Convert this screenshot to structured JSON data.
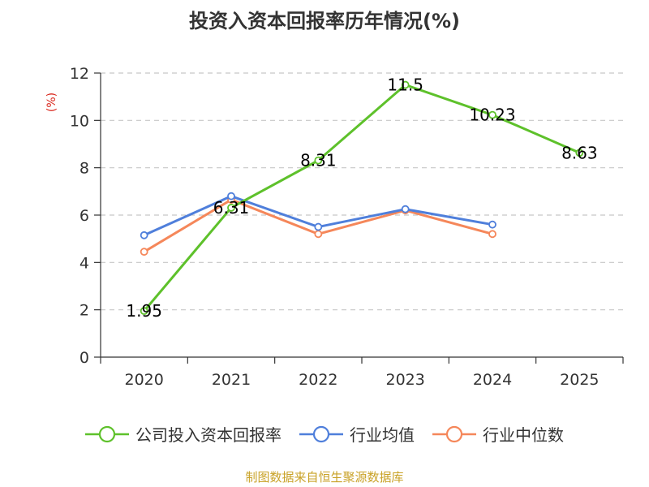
{
  "chart_data": {
    "type": "line",
    "title": "投资入资本回报率历年情况(%)",
    "ylabel": "(%)",
    "ylim": [
      0,
      12
    ],
    "yticks": [
      0,
      2,
      4,
      6,
      8,
      10,
      12
    ],
    "categories": [
      "2020",
      "2021",
      "2022",
      "2023",
      "2024",
      "2025"
    ],
    "grid": true,
    "legend_position": "bottom",
    "series": [
      {
        "name": "公司投入资本回报率",
        "color": "#5ec12b",
        "values": [
          1.95,
          6.31,
          8.31,
          11.5,
          10.23,
          8.63
        ],
        "labels": [
          "1.95",
          "6.31",
          "8.31",
          "11.5",
          "10.23",
          "8.63"
        ]
      },
      {
        "name": "行业均值",
        "color": "#4f7fdb",
        "values": [
          5.15,
          6.8,
          5.5,
          6.25,
          5.6,
          null
        ]
      },
      {
        "name": "行业中位数",
        "color": "#f5875a",
        "values": [
          4.45,
          6.65,
          5.2,
          6.2,
          5.2,
          null
        ]
      }
    ]
  },
  "title_text": "投资入资本回报率历年情况(%)",
  "source": "制图数据来自恒生聚源数据库"
}
